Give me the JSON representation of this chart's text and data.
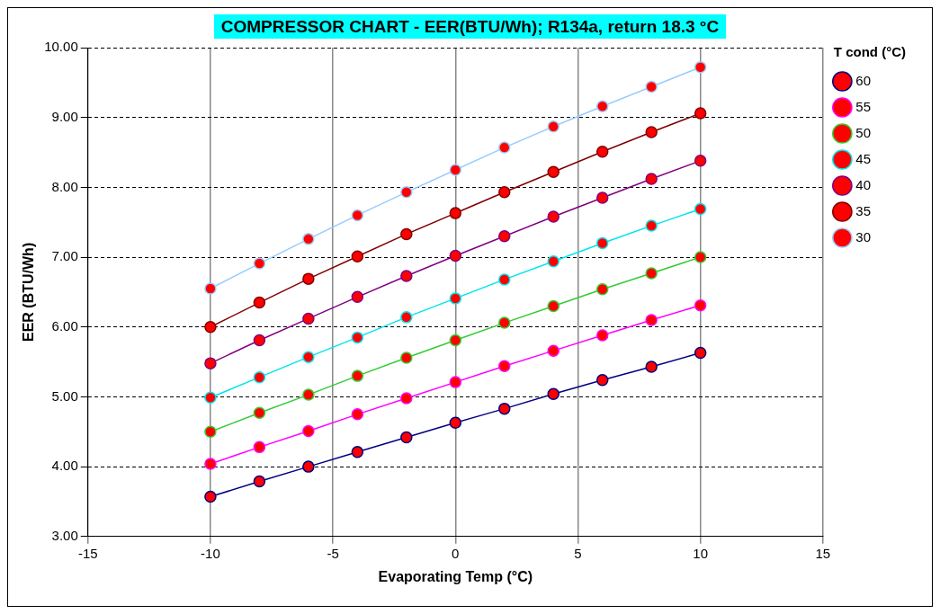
{
  "chart_data": {
    "type": "line",
    "title": "COMPRESSOR CHART - EER(BTU/Wh); R134a, return 18.3 °C",
    "xlabel": "Evaporating Temp (°C)",
    "ylabel": "EER (BTU/Wh)",
    "legend_title": "T cond (°C)",
    "x": [
      -10,
      -8,
      -6,
      -4,
      -2,
      0,
      2,
      4,
      6,
      8,
      10
    ],
    "series": [
      {
        "name": "60",
        "color": "#000080",
        "values": [
          3.57,
          3.79,
          4.0,
          4.21,
          4.42,
          4.63,
          4.83,
          5.04,
          5.24,
          5.43,
          5.63
        ]
      },
      {
        "name": "55",
        "color": "#ff00ff",
        "values": [
          4.04,
          4.28,
          4.51,
          4.75,
          4.98,
          5.21,
          5.44,
          5.66,
          5.88,
          6.1,
          6.31
        ]
      },
      {
        "name": "50",
        "color": "#33cc33",
        "values": [
          4.5,
          4.77,
          5.03,
          5.3,
          5.56,
          5.81,
          6.06,
          6.3,
          6.54,
          6.77,
          7.0
        ]
      },
      {
        "name": "45",
        "color": "#00e5ee",
        "values": [
          4.99,
          5.28,
          5.57,
          5.85,
          6.14,
          6.41,
          6.68,
          6.94,
          7.2,
          7.45,
          7.69
        ]
      },
      {
        "name": "40",
        "color": "#800080",
        "values": [
          5.48,
          5.81,
          6.12,
          6.43,
          6.73,
          7.02,
          7.3,
          7.58,
          7.85,
          8.12,
          8.38
        ]
      },
      {
        "name": "35",
        "color": "#800000",
        "values": [
          6.0,
          6.35,
          6.69,
          7.01,
          7.33,
          7.63,
          7.93,
          8.22,
          8.51,
          8.79,
          9.06
        ]
      },
      {
        "name": "30",
        "color": "#99ccff",
        "values": [
          6.55,
          6.91,
          7.26,
          7.6,
          7.93,
          8.25,
          8.57,
          8.87,
          9.16,
          9.44,
          9.72
        ]
      }
    ],
    "xlim": [
      -15,
      15
    ],
    "xticks": [
      -15,
      -10,
      -5,
      0,
      5,
      10,
      15
    ],
    "ylim": [
      3,
      10
    ],
    "yticks": [
      {
        "value": 3,
        "label": "3.00"
      },
      {
        "value": 4,
        "label": "4.00"
      },
      {
        "value": 5,
        "label": "5.00"
      },
      {
        "value": 6,
        "label": "6.00"
      },
      {
        "value": 7,
        "label": "7.00"
      },
      {
        "value": 8,
        "label": "8.00"
      },
      {
        "value": 9,
        "label": "9.00"
      },
      {
        "value": 10,
        "label": "10.00"
      }
    ],
    "grid": true,
    "legend": "right",
    "marker": "circle",
    "line_style": "solid"
  }
}
